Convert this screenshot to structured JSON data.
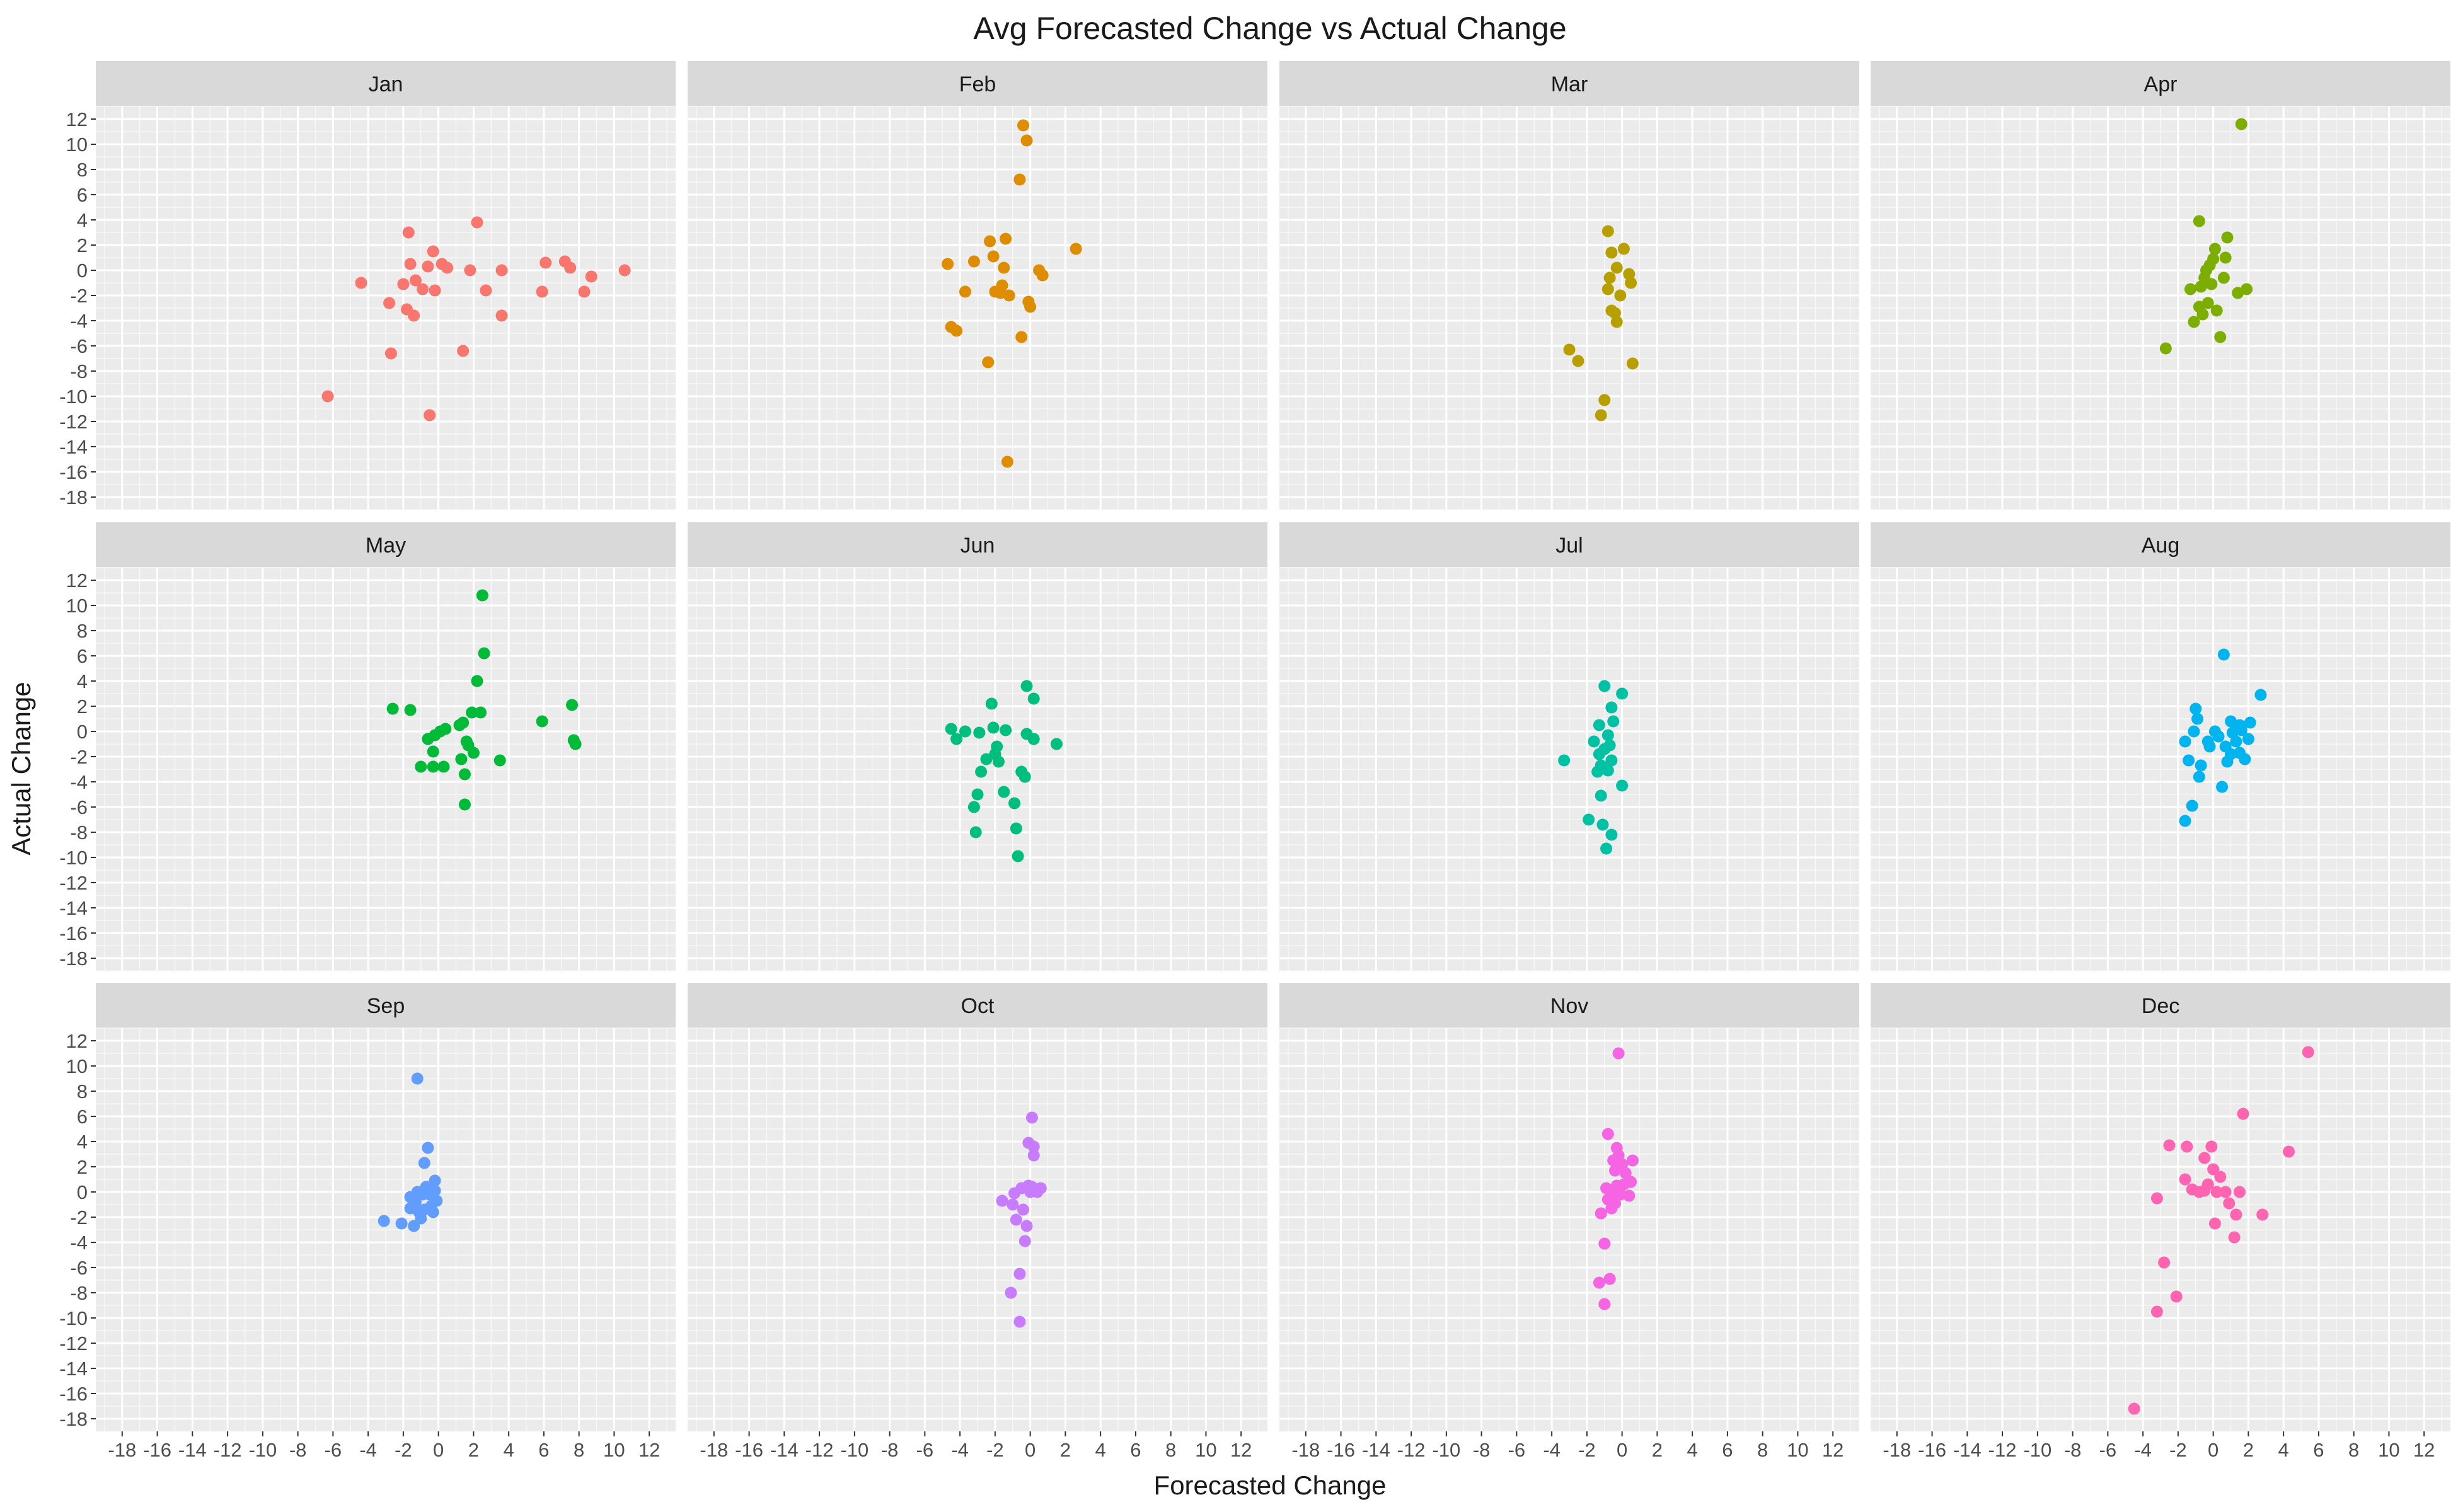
{
  "chart_data": {
    "type": "scatter",
    "title": "Avg Forecasted Change vs Actual Change",
    "xlabel": "Forecasted Change",
    "ylabel": "Actual Change",
    "xlim": [
      -19.5,
      13.5
    ],
    "ylim": [
      -19,
      13
    ],
    "x_ticks": [
      -18,
      -16,
      -14,
      -12,
      -10,
      -8,
      -6,
      -4,
      -2,
      0,
      2,
      4,
      6,
      8,
      10,
      12
    ],
    "y_ticks": [
      12,
      10,
      8,
      6,
      4,
      2,
      0,
      -2,
      -4,
      -6,
      -8,
      -10,
      -12,
      -14,
      -16,
      -18
    ],
    "grid": true,
    "facets": [
      {
        "name": "Jan",
        "color": "#F8766D",
        "points": [
          [
            -6.3,
            -10
          ],
          [
            -4.4,
            -1
          ],
          [
            -2.8,
            -2.6
          ],
          [
            -2.7,
            -6.6
          ],
          [
            -2,
            -1.1
          ],
          [
            -1.8,
            -3.1
          ],
          [
            -1.7,
            3
          ],
          [
            -1.6,
            0.5
          ],
          [
            -1.4,
            -3.6
          ],
          [
            -1.3,
            -0.8
          ],
          [
            -0.9,
            -1.5
          ],
          [
            -0.6,
            0.3
          ],
          [
            -0.5,
            -11.5
          ],
          [
            -0.3,
            1.5
          ],
          [
            -0.2,
            -1.6
          ],
          [
            0.2,
            0.5
          ],
          [
            0.5,
            0.2
          ],
          [
            1.4,
            -6.4
          ],
          [
            1.8,
            0
          ],
          [
            2.2,
            3.8
          ],
          [
            2.7,
            -1.6
          ],
          [
            3.6,
            0
          ],
          [
            3.6,
            -3.6
          ],
          [
            5.9,
            -1.7
          ],
          [
            6.1,
            0.6
          ],
          [
            7.2,
            0.7
          ],
          [
            7.5,
            0.2
          ],
          [
            8.3,
            -1.7
          ],
          [
            8.7,
            -0.5
          ],
          [
            10.6,
            0
          ]
        ]
      },
      {
        "name": "Feb",
        "color": "#DE8C00",
        "points": [
          [
            -4.7,
            0.5
          ],
          [
            -4.5,
            -4.5
          ],
          [
            -4.2,
            -4.8
          ],
          [
            -3.7,
            -1.7
          ],
          [
            -3.2,
            0.7
          ],
          [
            -2.4,
            -7.3
          ],
          [
            -2.3,
            2.3
          ],
          [
            -2.1,
            1.1
          ],
          [
            -2,
            -1.7
          ],
          [
            -1.7,
            -1.8
          ],
          [
            -1.6,
            -1.2
          ],
          [
            -1.5,
            0.2
          ],
          [
            -1.4,
            2.5
          ],
          [
            -1.3,
            -15.2
          ],
          [
            -1.2,
            -2
          ],
          [
            -0.6,
            7.2
          ],
          [
            -0.5,
            -5.3
          ],
          [
            -0.4,
            11.5
          ],
          [
            -0.2,
            10.3
          ],
          [
            -0.1,
            -2.5
          ],
          [
            0,
            -2.9
          ],
          [
            0.5,
            0
          ],
          [
            0.7,
            -0.4
          ],
          [
            2.6,
            1.7
          ]
        ]
      },
      {
        "name": "Mar",
        "color": "#B79F00",
        "points": [
          [
            -3,
            -6.3
          ],
          [
            -2.5,
            -7.2
          ],
          [
            -1.2,
            -11.5
          ],
          [
            -1,
            -10.3
          ],
          [
            -0.8,
            3.1
          ],
          [
            -0.8,
            -1.5
          ],
          [
            -0.7,
            -0.6
          ],
          [
            -0.6,
            -3.2
          ],
          [
            -0.6,
            1.4
          ],
          [
            -0.4,
            -3.4
          ],
          [
            -0.3,
            -4.1
          ],
          [
            -0.3,
            0.2
          ],
          [
            -0.1,
            -2
          ],
          [
            0.1,
            1.7
          ],
          [
            0.4,
            -0.3
          ],
          [
            0.5,
            -1
          ],
          [
            0.6,
            -7.4
          ]
        ]
      },
      {
        "name": "Apr",
        "color": "#7CAE00",
        "points": [
          [
            -2.7,
            -6.2
          ],
          [
            -1.3,
            -1.5
          ],
          [
            -1.1,
            -4.1
          ],
          [
            -0.8,
            3.9
          ],
          [
            -0.8,
            -2.9
          ],
          [
            -0.7,
            -1.3
          ],
          [
            -0.6,
            -3.5
          ],
          [
            -0.5,
            -0.6
          ],
          [
            -0.4,
            0
          ],
          [
            -0.3,
            -2.6
          ],
          [
            -0.2,
            0.4
          ],
          [
            -0.1,
            -1.1
          ],
          [
            0,
            0.9
          ],
          [
            0.1,
            1.7
          ],
          [
            0.2,
            -3.2
          ],
          [
            0.4,
            -5.3
          ],
          [
            0.6,
            -0.6
          ],
          [
            0.7,
            1
          ],
          [
            0.8,
            2.6
          ],
          [
            1.4,
            -1.8
          ],
          [
            1.6,
            11.6
          ],
          [
            1.9,
            -1.5
          ]
        ]
      },
      {
        "name": "May",
        "color": "#00BA38",
        "points": [
          [
            -2.6,
            1.8
          ],
          [
            -1.6,
            1.7
          ],
          [
            -1,
            -2.8
          ],
          [
            -0.6,
            -0.6
          ],
          [
            -0.3,
            -1.6
          ],
          [
            -0.3,
            -2.8
          ],
          [
            -0.2,
            -0.3
          ],
          [
            0.1,
            0
          ],
          [
            0.3,
            -2.8
          ],
          [
            0.4,
            0.2
          ],
          [
            1.2,
            0.5
          ],
          [
            1.3,
            -2.2
          ],
          [
            1.4,
            0.7
          ],
          [
            1.5,
            -3.4
          ],
          [
            1.5,
            -5.8
          ],
          [
            1.6,
            -0.8
          ],
          [
            1.7,
            -1.1
          ],
          [
            1.9,
            1.5
          ],
          [
            2,
            -1.7
          ],
          [
            2.2,
            4
          ],
          [
            2.4,
            1.5
          ],
          [
            2.5,
            10.8
          ],
          [
            2.6,
            6.2
          ],
          [
            3.5,
            -2.3
          ],
          [
            5.9,
            0.8
          ],
          [
            7.6,
            2.1
          ],
          [
            7.7,
            -0.7
          ],
          [
            7.8,
            -1
          ]
        ]
      },
      {
        "name": "Jun",
        "color": "#00BF7D",
        "points": [
          [
            -4.5,
            0.2
          ],
          [
            -4.2,
            -0.6
          ],
          [
            -3.7,
            0
          ],
          [
            -3.2,
            -6
          ],
          [
            -3.1,
            -8
          ],
          [
            -3,
            -5
          ],
          [
            -2.9,
            -0.1
          ],
          [
            -2.8,
            -3.2
          ],
          [
            -2.5,
            -2.2
          ],
          [
            -2.2,
            2.2
          ],
          [
            -2.1,
            0.3
          ],
          [
            -2,
            -1.8
          ],
          [
            -1.9,
            -1.2
          ],
          [
            -1.8,
            -2.4
          ],
          [
            -1.5,
            -4.8
          ],
          [
            -1.4,
            0.1
          ],
          [
            -0.9,
            -5.7
          ],
          [
            -0.8,
            -7.7
          ],
          [
            -0.7,
            -9.9
          ],
          [
            -0.5,
            -3.2
          ],
          [
            -0.3,
            -3.6
          ],
          [
            -0.2,
            3.6
          ],
          [
            -0.2,
            -0.2
          ],
          [
            0.2,
            2.6
          ],
          [
            0.2,
            -0.6
          ],
          [
            1.5,
            -1
          ]
        ]
      },
      {
        "name": "Jul",
        "color": "#00C1A3",
        "points": [
          [
            -3.3,
            -2.3
          ],
          [
            -1.9,
            -7
          ],
          [
            -1.6,
            -0.8
          ],
          [
            -1.4,
            -3.2
          ],
          [
            -1.3,
            -1.8
          ],
          [
            -1.3,
            0.5
          ],
          [
            -1.2,
            -5.1
          ],
          [
            -1.2,
            -2.7
          ],
          [
            -1.1,
            -7.4
          ],
          [
            -1,
            3.6
          ],
          [
            -1,
            -1.4
          ],
          [
            -0.9,
            -9.3
          ],
          [
            -0.8,
            -3.1
          ],
          [
            -0.8,
            -0.3
          ],
          [
            -0.7,
            -1.1
          ],
          [
            -0.6,
            -8.2
          ],
          [
            -0.6,
            1.9
          ],
          [
            -0.6,
            -2.3
          ],
          [
            -0.5,
            0.8
          ],
          [
            0,
            3
          ],
          [
            0,
            -4.3
          ]
        ]
      },
      {
        "name": "Aug",
        "color": "#00B4EF",
        "points": [
          [
            -1.6,
            -0.8
          ],
          [
            -1.6,
            -7.1
          ],
          [
            -1.4,
            -2.3
          ],
          [
            -1.2,
            -5.9
          ],
          [
            -1.1,
            0
          ],
          [
            -1,
            1.8
          ],
          [
            -0.9,
            1
          ],
          [
            -0.8,
            -3.6
          ],
          [
            -0.7,
            -2.7
          ],
          [
            -0.3,
            -0.8
          ],
          [
            -0.2,
            -1.2
          ],
          [
            0.1,
            0
          ],
          [
            0.3,
            -0.4
          ],
          [
            0.5,
            -4.4
          ],
          [
            0.6,
            6.1
          ],
          [
            0.7,
            -1.2
          ],
          [
            0.8,
            -2.4
          ],
          [
            1,
            -1.8
          ],
          [
            1,
            0.8
          ],
          [
            1.1,
            -0.1
          ],
          [
            1.3,
            -0.8
          ],
          [
            1.5,
            -1.7
          ],
          [
            1.5,
            0.5
          ],
          [
            1.6,
            0.1
          ],
          [
            1.8,
            -2.2
          ],
          [
            2,
            -0.6
          ],
          [
            2.1,
            0.7
          ],
          [
            2.7,
            2.9
          ]
        ]
      },
      {
        "name": "Sep",
        "color": "#619CFF",
        "points": [
          [
            -3.1,
            -2.3
          ],
          [
            -2.1,
            -2.5
          ],
          [
            -1.6,
            -0.4
          ],
          [
            -1.6,
            -1.3
          ],
          [
            -1.4,
            -2.7
          ],
          [
            -1.3,
            -0.8
          ],
          [
            -1.2,
            9
          ],
          [
            -1.2,
            0
          ],
          [
            -1.1,
            -1.6
          ],
          [
            -1,
            -2.1
          ],
          [
            -0.9,
            -0.2
          ],
          [
            -0.8,
            2.3
          ],
          [
            -0.8,
            -1.4
          ],
          [
            -0.7,
            0.4
          ],
          [
            -0.6,
            3.5
          ],
          [
            -0.5,
            -0.2
          ],
          [
            -0.4,
            -1.1
          ],
          [
            -0.3,
            -1.6
          ],
          [
            -0.2,
            0.1
          ],
          [
            -0.2,
            0.9
          ],
          [
            -0.1,
            -0.7
          ]
        ]
      },
      {
        "name": "Oct",
        "color": "#C77CFF",
        "points": [
          [
            -1.6,
            -0.7
          ],
          [
            -1.1,
            -8
          ],
          [
            -1,
            -1
          ],
          [
            -0.9,
            -0.1
          ],
          [
            -0.8,
            -2.2
          ],
          [
            -0.6,
            -6.5
          ],
          [
            -0.6,
            -10.3
          ],
          [
            -0.5,
            0.3
          ],
          [
            -0.4,
            -1.4
          ],
          [
            -0.3,
            -3.9
          ],
          [
            -0.2,
            -2.7
          ],
          [
            -0.1,
            0.5
          ],
          [
            -0.1,
            3.9
          ],
          [
            0,
            0
          ],
          [
            0.1,
            5.9
          ],
          [
            0.1,
            0.4
          ],
          [
            0.2,
            3.6
          ],
          [
            0.2,
            2.9
          ],
          [
            0.4,
            0
          ],
          [
            0.6,
            0.3
          ]
        ]
      },
      {
        "name": "Nov",
        "color": "#F564E3",
        "points": [
          [
            -1.3,
            -7.2
          ],
          [
            -1.2,
            -1.7
          ],
          [
            -1,
            -4.1
          ],
          [
            -1,
            -8.9
          ],
          [
            -0.9,
            0.3
          ],
          [
            -0.8,
            -0.6
          ],
          [
            -0.8,
            4.6
          ],
          [
            -0.7,
            -6.9
          ],
          [
            -0.6,
            -1.3
          ],
          [
            -0.5,
            2.5
          ],
          [
            -0.5,
            0
          ],
          [
            -0.4,
            1.7
          ],
          [
            -0.4,
            -0.9
          ],
          [
            -0.3,
            0.5
          ],
          [
            -0.3,
            3.5
          ],
          [
            -0.2,
            11
          ],
          [
            -0.2,
            2.9
          ],
          [
            -0.1,
            -0.2
          ],
          [
            0,
            2.2
          ],
          [
            0.1,
            0.6
          ],
          [
            0.2,
            1.5
          ],
          [
            0.4,
            -0.3
          ],
          [
            0.5,
            0.8
          ],
          [
            0.6,
            2.5
          ]
        ]
      },
      {
        "name": "Dec",
        "color": "#FF64B0",
        "points": [
          [
            -4.5,
            -17.2
          ],
          [
            -3.2,
            -9.5
          ],
          [
            -3.2,
            -0.5
          ],
          [
            -2.8,
            -5.6
          ],
          [
            -2.5,
            3.7
          ],
          [
            -2.1,
            -8.3
          ],
          [
            -1.6,
            1
          ],
          [
            -1.5,
            3.6
          ],
          [
            -1.2,
            0.2
          ],
          [
            -0.8,
            0
          ],
          [
            -0.5,
            2.7
          ],
          [
            -0.5,
            0.1
          ],
          [
            -0.3,
            0.6
          ],
          [
            -0.1,
            3.6
          ],
          [
            0,
            1.8
          ],
          [
            0.1,
            -2.5
          ],
          [
            0.2,
            0
          ],
          [
            0.4,
            1.2
          ],
          [
            0.7,
            0
          ],
          [
            0.9,
            -0.9
          ],
          [
            1.2,
            -3.6
          ],
          [
            1.3,
            -1.8
          ],
          [
            1.5,
            0
          ],
          [
            1.7,
            6.2
          ],
          [
            2.8,
            -1.8
          ],
          [
            4.3,
            3.2
          ],
          [
            5.4,
            11.1
          ]
        ]
      }
    ]
  }
}
